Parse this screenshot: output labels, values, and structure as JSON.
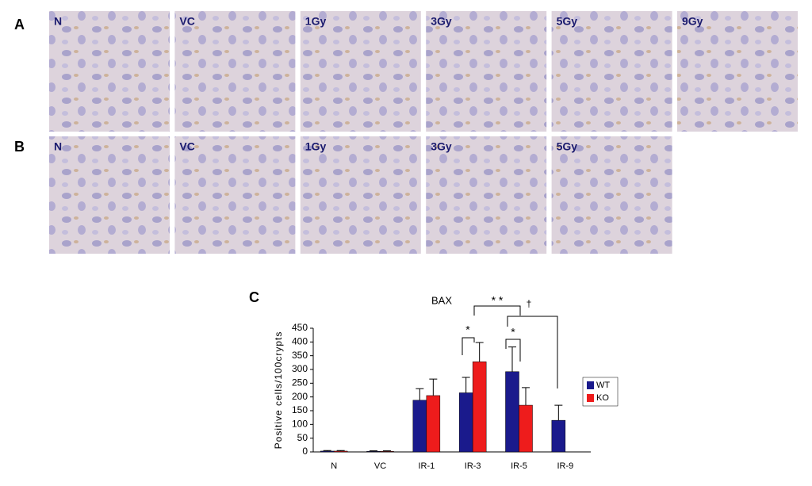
{
  "figure": {
    "panel_a": {
      "label": "A",
      "images": [
        "N",
        "VC",
        "1Gy",
        "3Gy",
        "5Gy",
        "9Gy"
      ]
    },
    "panel_b": {
      "label": "B",
      "images": [
        "N",
        "VC",
        "1Gy",
        "3Gy",
        "5Gy"
      ]
    },
    "panel_c": {
      "label": "C"
    },
    "annotations": [
      "*",
      "* *",
      "*",
      "†"
    ]
  },
  "chart_data": {
    "type": "bar",
    "title": "BAX",
    "y_label": "Positive cells/100crypts",
    "categories": [
      "N",
      "VC",
      "IR-1",
      "IR-3",
      "IR-5",
      "IR-9"
    ],
    "series": [
      {
        "name": "WT",
        "color": "#1a1a8c",
        "values": [
          3,
          2,
          188,
          215,
          292,
          115
        ],
        "errors": [
          2,
          2,
          42,
          56,
          90,
          55
        ]
      },
      {
        "name": "KO",
        "color": "#ee1c1c",
        "values": [
          3,
          2,
          205,
          328,
          170,
          null
        ],
        "errors": [
          2,
          2,
          60,
          70,
          64,
          null
        ]
      }
    ],
    "ylim": [
      0,
      450
    ],
    "yticks": [
      0,
      50,
      100,
      150,
      200,
      250,
      300,
      350,
      400,
      450
    ],
    "legend": "right"
  }
}
